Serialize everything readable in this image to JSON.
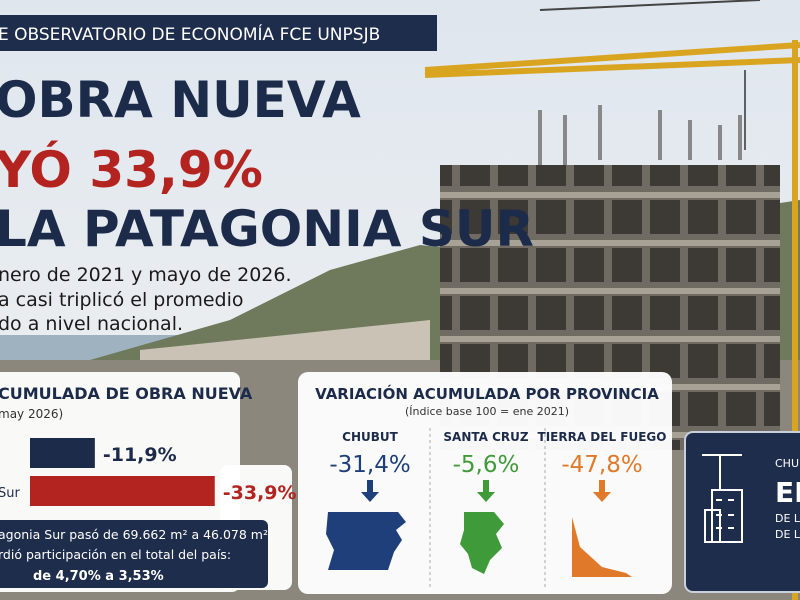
{
  "banner": "E OBSERVATORIO DE ECONOMÍA FCE UNPSJB",
  "headline": [
    "OBRA NUEVA",
    "YÓ 33,9%",
    "LA PATAGONIA SUR"
  ],
  "lead": [
    "nero de 2021 y mayo de 2026.",
    "a casi triplicó el promedio",
    "do a nivel nacional."
  ],
  "chart_data": {
    "type": "bar",
    "title": "CUMULADA DE OBRA NUEVA",
    "subtitle": "may 2026)",
    "categories": [
      null,
      "Sur"
    ],
    "values": [
      -11.9,
      -33.9
    ],
    "value_labels": [
      "-11,9%",
      "-33,9%"
    ],
    "colors": [
      "#1c2b4a",
      "#b3231f"
    ],
    "xlim": [
      0,
      -40
    ]
  },
  "note": [
    "agonia Sur pasó de 69.662 m² a 46.078 m²",
    "rdió participación en el total del país:",
    "de 4,70% a 3,53%"
  ],
  "provinces": {
    "title": "VARIACIÓN ACUMULADA POR PROVINCIA",
    "subtitle": "(Índice base 100 = ene 2021)",
    "items": [
      {
        "name": "CHUBUT",
        "value": "-31,4%",
        "color": "#1f3f7a"
      },
      {
        "name": "SANTA CRUZ",
        "value": "-5,6%",
        "color": "#3f9a3a"
      },
      {
        "name": "TIERRA DEL FUEGO",
        "value": "-47,8%",
        "color": "#e07a2a"
      }
    ]
  },
  "side_box": [
    "CHUBU",
    "EL",
    "DE LA",
    "DE LA"
  ]
}
